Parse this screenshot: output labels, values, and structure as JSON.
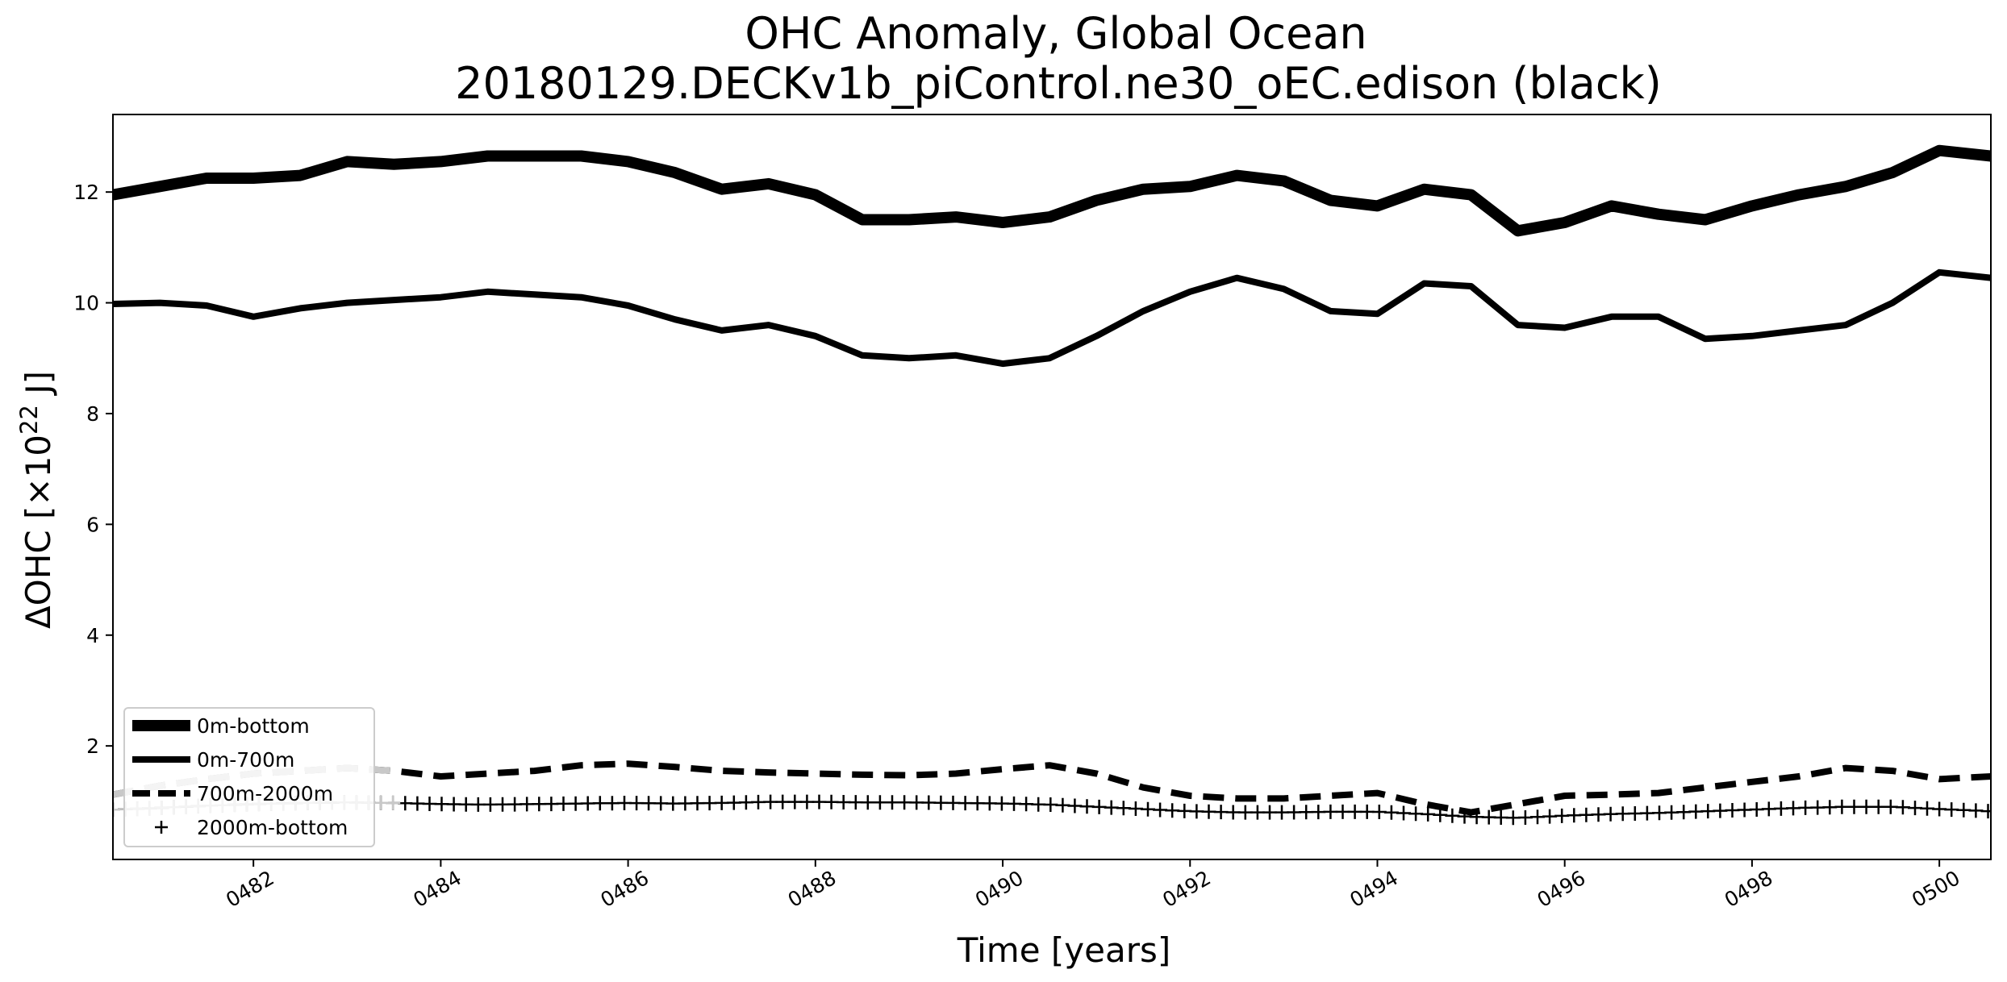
{
  "chart_data": {
    "type": "line",
    "title": "OHC Anomaly, Global Ocean",
    "subtitle": "20180129.DECKv1b_piControl.ne30_oEC.edison (black)",
    "xlabel": "Time [years]",
    "ylabel_main": "ΔOHC [×10",
    "ylabel_exp": "22",
    "ylabel_unit": " J]",
    "xlim": [
      480.5,
      500.55
    ],
    "ylim": [
      -0.05,
      13.4
    ],
    "x_ticks": [
      482,
      484,
      486,
      488,
      490,
      492,
      494,
      496,
      498,
      500
    ],
    "x_tick_labels": [
      "0482",
      "0484",
      "0486",
      "0488",
      "0490",
      "0492",
      "0494",
      "0496",
      "0498",
      "0500"
    ],
    "y_ticks": [
      2,
      4,
      6,
      8,
      10,
      12
    ],
    "y_tick_labels": [
      "2",
      "4",
      "6",
      "8",
      "10",
      "12"
    ],
    "grid": false,
    "legend_position": "lower-left",
    "series": [
      {
        "name": "0m-bottom",
        "style": "thick-solid",
        "color": "#000000",
        "x": [
          480.5,
          481.0,
          481.5,
          482.0,
          482.5,
          483.0,
          483.5,
          484.0,
          484.5,
          485.0,
          485.5,
          486.0,
          486.5,
          487.0,
          487.5,
          488.0,
          488.5,
          489.0,
          489.5,
          490.0,
          490.5,
          491.0,
          491.5,
          492.0,
          492.5,
          493.0,
          493.5,
          494.0,
          494.5,
          495.0,
          495.5,
          496.0,
          496.5,
          497.0,
          497.5,
          498.0,
          498.5,
          499.0,
          499.5,
          500.0,
          500.55
        ],
        "values": [
          11.95,
          12.1,
          12.25,
          12.25,
          12.3,
          12.55,
          12.5,
          12.55,
          12.65,
          12.65,
          12.65,
          12.55,
          12.35,
          12.05,
          12.15,
          11.95,
          11.5,
          11.5,
          11.55,
          11.45,
          11.55,
          11.85,
          12.05,
          12.1,
          12.3,
          12.2,
          11.85,
          11.75,
          12.05,
          11.95,
          11.3,
          11.45,
          11.75,
          11.6,
          11.5,
          11.75,
          11.95,
          12.1,
          12.35,
          12.75,
          12.65
        ]
      },
      {
        "name": "0m-700m",
        "style": "solid",
        "color": "#000000",
        "x": [
          480.5,
          481.0,
          481.5,
          482.0,
          482.5,
          483.0,
          483.5,
          484.0,
          484.5,
          485.0,
          485.5,
          486.0,
          486.5,
          487.0,
          487.5,
          488.0,
          488.5,
          489.0,
          489.5,
          490.0,
          490.5,
          491.0,
          491.5,
          492.0,
          492.5,
          493.0,
          493.5,
          494.0,
          494.5,
          495.0,
          495.5,
          496.0,
          496.5,
          497.0,
          497.5,
          498.0,
          498.5,
          499.0,
          499.5,
          500.0,
          500.55
        ],
        "values": [
          9.98,
          10.0,
          9.95,
          9.75,
          9.9,
          10.0,
          10.05,
          10.1,
          10.2,
          10.15,
          10.1,
          9.95,
          9.7,
          9.5,
          9.6,
          9.4,
          9.05,
          9.0,
          9.05,
          8.9,
          9.0,
          9.4,
          9.85,
          10.2,
          10.45,
          10.25,
          9.85,
          9.8,
          10.35,
          10.3,
          9.6,
          9.55,
          9.75,
          9.75,
          9.35,
          9.4,
          9.5,
          9.6,
          10.0,
          10.55,
          10.45
        ]
      },
      {
        "name": "700m-2000m",
        "style": "dashed",
        "color": "#000000",
        "x": [
          480.5,
          481.0,
          481.5,
          482.0,
          482.5,
          483.0,
          483.5,
          484.0,
          484.5,
          485.0,
          485.5,
          486.0,
          486.5,
          487.0,
          487.5,
          488.0,
          488.5,
          489.0,
          489.5,
          490.0,
          490.5,
          491.0,
          491.5,
          492.0,
          492.5,
          493.0,
          493.5,
          494.0,
          494.5,
          495.0,
          495.5,
          496.0,
          496.5,
          497.0,
          497.5,
          498.0,
          498.5,
          499.0,
          499.5,
          500.0,
          500.55
        ],
        "values": [
          1.12,
          1.28,
          1.4,
          1.5,
          1.55,
          1.6,
          1.55,
          1.45,
          1.5,
          1.55,
          1.65,
          1.68,
          1.62,
          1.55,
          1.52,
          1.5,
          1.48,
          1.47,
          1.5,
          1.58,
          1.65,
          1.5,
          1.25,
          1.1,
          1.05,
          1.05,
          1.1,
          1.15,
          0.95,
          0.8,
          0.95,
          1.1,
          1.12,
          1.15,
          1.25,
          1.35,
          1.45,
          1.6,
          1.55,
          1.4,
          1.45
        ]
      },
      {
        "name": "2000m-bottom",
        "style": "plus-markers",
        "color": "#000000",
        "x": [
          480.5,
          481.0,
          481.5,
          482.0,
          482.5,
          483.0,
          483.5,
          484.0,
          484.5,
          485.0,
          485.5,
          486.0,
          486.5,
          487.0,
          487.5,
          488.0,
          488.5,
          489.0,
          489.5,
          490.0,
          490.5,
          491.0,
          491.5,
          492.0,
          492.5,
          493.0,
          493.5,
          494.0,
          494.5,
          495.0,
          495.5,
          496.0,
          496.5,
          497.0,
          497.5,
          498.0,
          498.5,
          499.0,
          499.5,
          500.0,
          500.55
        ],
        "values": [
          0.85,
          0.88,
          0.92,
          0.95,
          0.97,
          0.98,
          0.97,
          0.95,
          0.94,
          0.95,
          0.96,
          0.97,
          0.96,
          0.97,
          0.99,
          0.99,
          0.98,
          0.98,
          0.97,
          0.96,
          0.94,
          0.9,
          0.86,
          0.82,
          0.8,
          0.8,
          0.81,
          0.81,
          0.77,
          0.72,
          0.7,
          0.74,
          0.77,
          0.79,
          0.82,
          0.85,
          0.88,
          0.9,
          0.9,
          0.86,
          0.82
        ]
      }
    ],
    "overlay_series": [
      {
        "style": "dashed",
        "color": "#c8c8c8",
        "x": [
          480.5,
          481.0,
          481.5,
          482.0,
          482.5,
          483.0,
          483.5
        ],
        "values": [
          1.12,
          1.28,
          1.4,
          1.5,
          1.55,
          1.6,
          1.55
        ]
      },
      {
        "style": "plus-markers",
        "color": "#c8c8c8",
        "x": [
          480.5,
          481.0,
          481.5,
          482.0,
          482.5,
          483.0,
          483.5
        ],
        "values": [
          0.85,
          0.88,
          0.92,
          0.95,
          0.97,
          0.98,
          0.97
        ]
      }
    ]
  }
}
